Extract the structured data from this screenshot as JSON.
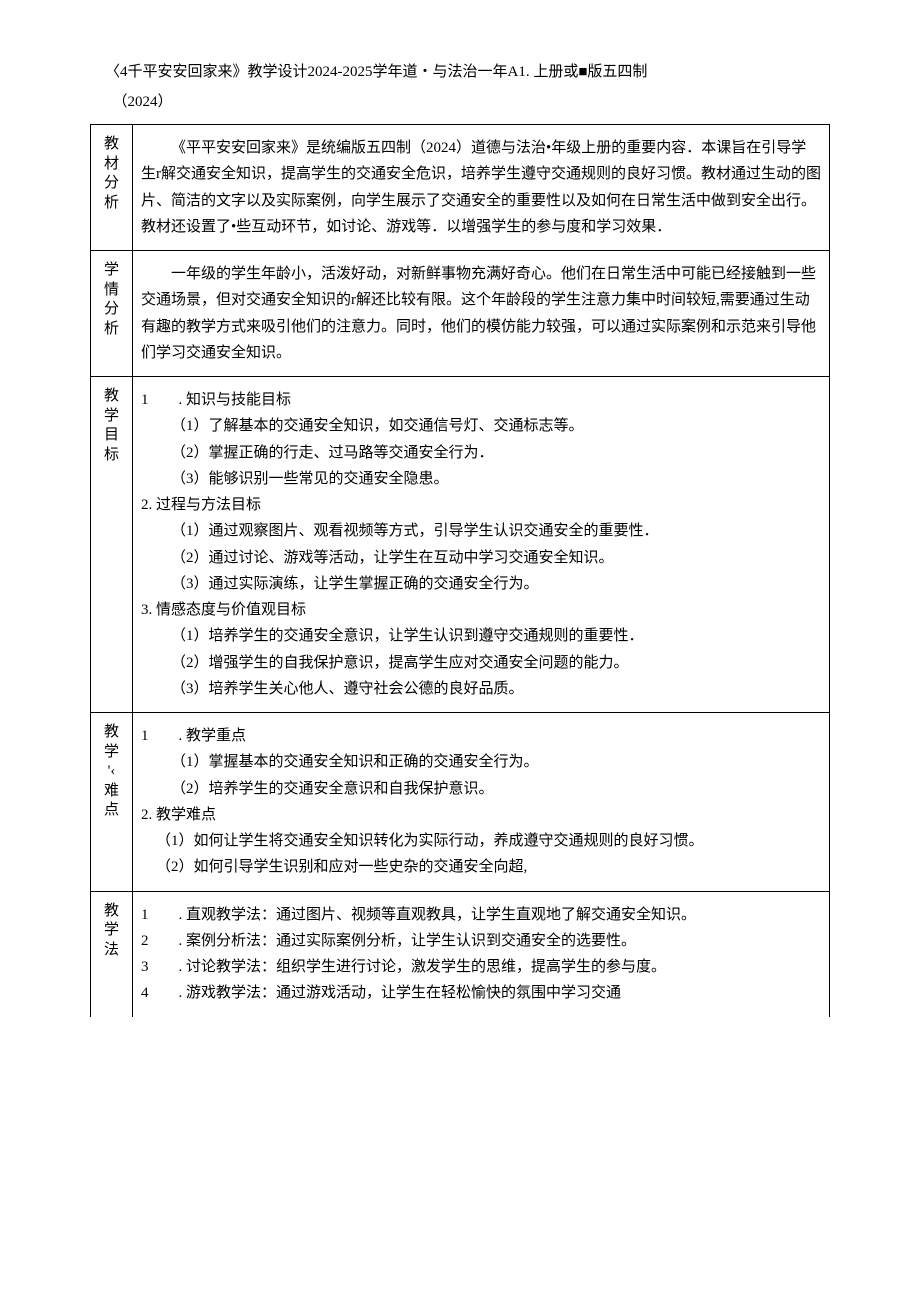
{
  "header": {
    "title_line": "〈4千平安安回家来》教学设计2024-2025学年道・与法治一年A1. 上册或■版五四制",
    "subtitle_line": "（2024）"
  },
  "rows": {
    "r1": {
      "label_chars": [
        "教",
        "材",
        "分",
        "析"
      ],
      "p1": "《平平安安回家来》是统编版五四制（2024）道德与法治•年级上册的重要内容．本课旨在引导学生r解交通安全知识，提高学生的交通安全危识，培养学生遵守交通规则的良好习惯。教材通过生动的图片、简洁的文字以及实际案例，向学生展示了交通安全的重要性以及如何在日常生活中做到安全出行。教材还设置了•些互动环节，如讨论、游戏等．以增强学生的参与度和学习效果．"
    },
    "r2": {
      "label_chars": [
        "学",
        "情",
        "分",
        "析"
      ],
      "p1": "一年级的学生年龄小，活泼好动，对新鲜事物充满好奇心。他们在日常生活中可能已经接触到一些交通场景，但对交通安全知识的r解还比较有限。这个年龄段的学生注意力集中时间较短,需要通过生动有趣的教学方式来吸引他们的注意力。同时，他们的模仿能力较强，可以通过实际案例和示范来引导他们学习交通安全知识。"
    },
    "r3": {
      "label_chars": [
        "教",
        "学",
        "目",
        "标"
      ],
      "h1": "1  . 知识与技能目标",
      "h1_1": "（1）了解基本的交通安全知识，如交通信号灯、交通标志等。",
      "h1_2": "（2）掌握正确的行走、过马路等交通安全行为．",
      "h1_3": "（3）能够识别一些常见的交通安全隐患。",
      "h2": "2. 过程与方法目标",
      "h2_1": "（1）通过观察图片、观看视频等方式，引导学生认识交通安全的重要性．",
      "h2_2": "（2）通过讨论、游戏等活动，让学生在互动中学习交通安全知识。",
      "h2_3": "（3）通过实际演练，让学生掌握正确的交通安全行为。",
      "h3": "3. 情感态度与价值观目标",
      "h3_1": "（1）培养学生的交通安全意识，让学生认识到遵守交通规则的重要性．",
      "h3_2": "（2）增强学生的自我保护意识，提高学生应对交通安全问题的能力。",
      "h3_3": "（3）培养学生关心他人、遵守社会公德的良好品质。"
    },
    "r4": {
      "label_chars": [
        "教",
        "学",
        "'‹",
        "难",
        "点"
      ],
      "h1": "1  . 教学重点",
      "h1_1": "（1）掌握基本的交通安全知识和正确的交通安全行为。",
      "h1_2": "（2）培养学生的交通安全意识和自我保护意识。",
      "h2": "2. 教学难点",
      "h2_1": "（1）如何让学生将交通安全知识转化为实际行动，养成遵守交通规则的良好习惯。",
      "h2_2": "（2）如何引导学生识别和应对一些史杂的交通安全向超,"
    },
    "r5": {
      "label_chars": [
        "教",
        "学",
        "法"
      ],
      "i1": "1  . 直观教学法：通过图片、视频等直观教具，让学生直观地了解交通安全知识。",
      "i2": "2  . 案例分析法：通过实际案例分析，让学生认识到交通安全的选要性。",
      "i3": "3  . 讨论教学法：组织学生进行讨论，激发学生的思维，提高学生的参与度。",
      "i4": "4  . 游戏教学法：通过游戏活动，让学生在轻松愉快的氛围中学习交通"
    }
  }
}
